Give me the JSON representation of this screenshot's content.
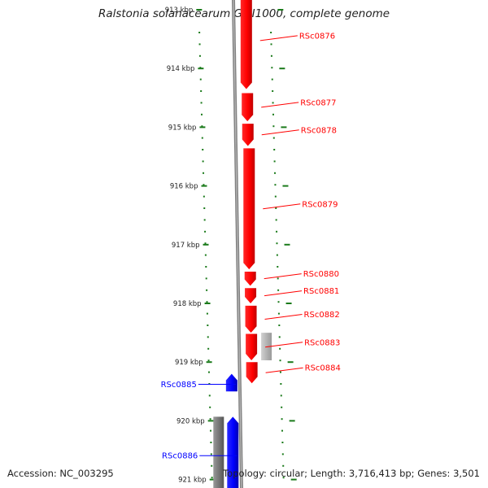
{
  "title": "Ralstonia solanacearum GMI1000, complete genome",
  "footer": {
    "accession": "Accession: NC_003295",
    "stats": "Topology: circular; Length: 3,716,413 bp; Genes: 3,501"
  },
  "colors": {
    "forward_gene": "#ff0000",
    "reverse_gene": "#0000ff",
    "other_forward": "#b0b0b0",
    "other_reverse": "#777777",
    "tick": "#1a7a1a",
    "backbone": "#808080"
  },
  "axis": {
    "unit": "kbp",
    "ticks": [
      {
        "label": "913 kbp",
        "kbp": 913
      },
      {
        "label": "914 kbp",
        "kbp": 914
      },
      {
        "label": "915 kbp",
        "kbp": 915
      },
      {
        "label": "916 kbp",
        "kbp": 916
      },
      {
        "label": "917 kbp",
        "kbp": 917
      },
      {
        "label": "918 kbp",
        "kbp": 918
      },
      {
        "label": "919 kbp",
        "kbp": 919
      },
      {
        "label": "920 kbp",
        "kbp": 920
      },
      {
        "label": "921 kbp",
        "kbp": 921
      }
    ]
  },
  "genes": [
    {
      "name": "RSc0876",
      "strand": "+",
      "start_kbp": 912.7,
      "end_kbp": 914.35,
      "color": "#ff0000"
    },
    {
      "name": "RSc0877",
      "strand": "+",
      "start_kbp": 914.42,
      "end_kbp": 914.9,
      "color": "#ff0000"
    },
    {
      "name": "RSc0878",
      "strand": "+",
      "start_kbp": 914.94,
      "end_kbp": 915.32,
      "color": "#ff0000"
    },
    {
      "name": "RSc0879",
      "strand": "+",
      "start_kbp": 915.36,
      "end_kbp": 917.42,
      "color": "#ff0000"
    },
    {
      "name": "RSc0880",
      "strand": "+",
      "start_kbp": 917.46,
      "end_kbp": 917.7,
      "color": "#ff0000"
    },
    {
      "name": "RSc0881",
      "strand": "+",
      "start_kbp": 917.74,
      "end_kbp": 918.0,
      "color": "#ff0000"
    },
    {
      "name": "RSc0882",
      "strand": "+",
      "start_kbp": 918.04,
      "end_kbp": 918.5,
      "color": "#ff0000"
    },
    {
      "name": "RSc0883",
      "strand": "+",
      "start_kbp": 918.52,
      "end_kbp": 918.97,
      "color": "#ff0000"
    },
    {
      "name": "RSc0884",
      "strand": "+",
      "start_kbp": 919.0,
      "end_kbp": 919.36,
      "color": "#ff0000"
    },
    {
      "name": "RSc0885",
      "strand": "-",
      "start_kbp": 919.2,
      "end_kbp": 919.5,
      "color": "#0000ff"
    },
    {
      "name": "RSc0886",
      "strand": "-",
      "start_kbp": 919.93,
      "end_kbp": 921.2,
      "color": "#0000ff"
    }
  ],
  "features": [
    {
      "strand": "+",
      "start_kbp": 918.5,
      "end_kbp": 918.97,
      "color": "#b0b0b0"
    },
    {
      "strand": "-",
      "start_kbp": 919.93,
      "end_kbp": 921.2,
      "color": "#777777"
    }
  ]
}
